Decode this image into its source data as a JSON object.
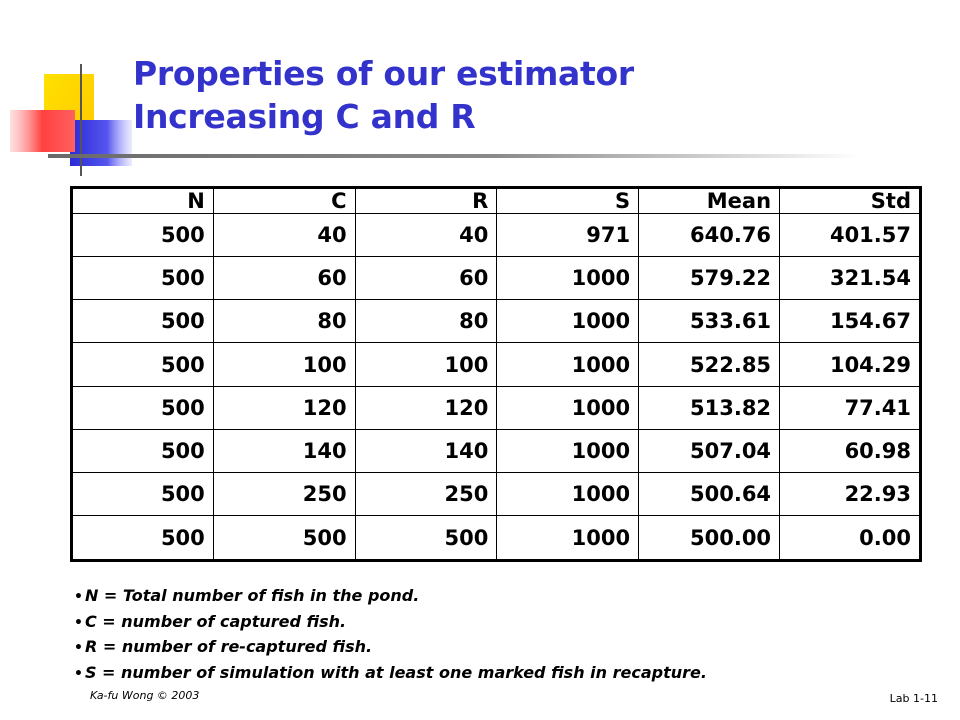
{
  "slide": {
    "title_line1": "Properties of our estimator",
    "title_line2": "Increasing C and R",
    "colors": {
      "title": "#3333CC",
      "accent_yellow": "#FFD700",
      "accent_blue": "#3333CC",
      "accent_red": "#FF4444"
    }
  },
  "table": {
    "headers": [
      "N",
      "C",
      "R",
      "S",
      "Mean",
      "Std"
    ],
    "rows": [
      [
        "500",
        "40",
        "40",
        "971",
        "640.76",
        "401.57"
      ],
      [
        "500",
        "60",
        "60",
        "1000",
        "579.22",
        "321.54"
      ],
      [
        "500",
        "80",
        "80",
        "1000",
        "533.61",
        "154.67"
      ],
      [
        "500",
        "100",
        "100",
        "1000",
        "522.85",
        "104.29"
      ],
      [
        "500",
        "120",
        "120",
        "1000",
        "513.82",
        "77.41"
      ],
      [
        "500",
        "140",
        "140",
        "1000",
        "507.04",
        "60.98"
      ],
      [
        "500",
        "250",
        "250",
        "1000",
        "500.64",
        "22.93"
      ],
      [
        "500",
        "500",
        "500",
        "1000",
        "500.00",
        "0.00"
      ]
    ]
  },
  "notes": [
    "N = Total number of fish in the pond.",
    "C = number of captured fish.",
    "R = number of re-captured fish.",
    "S = number of simulation with at least one marked fish in recapture."
  ],
  "footer": {
    "author": "Ka-fu Wong © 2003",
    "page": "Lab 1-11"
  }
}
